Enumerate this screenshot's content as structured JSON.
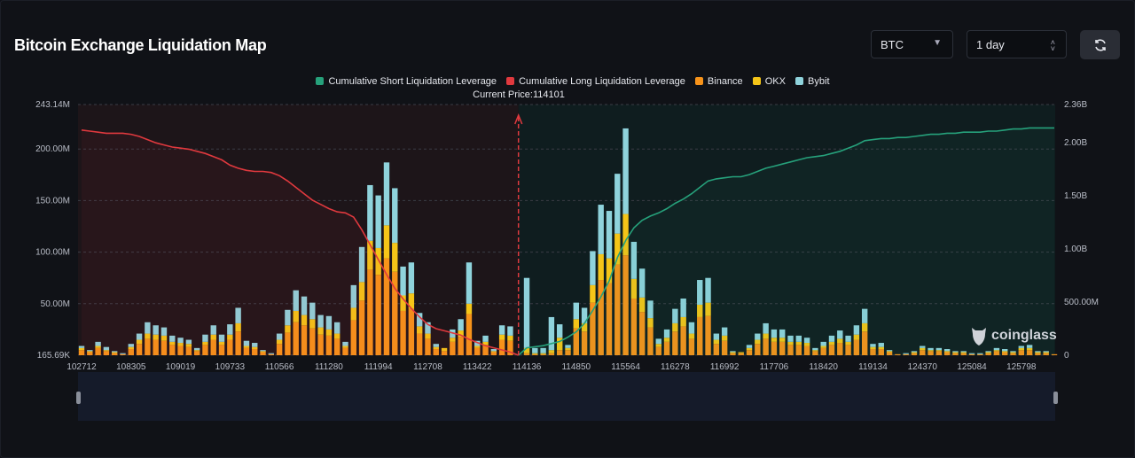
{
  "header": {
    "title": "Bitcoin Exchange Liquidation Map",
    "coin_select": "BTC",
    "range_select": "1 day",
    "refresh_icon": "refresh-icon"
  },
  "legend": [
    {
      "label": "Cumulative Short Liquidation Leverage",
      "color": "#26a17b"
    },
    {
      "label": "Cumulative Long Liquidation Leverage",
      "color": "#e0393e"
    },
    {
      "label": "Binance",
      "color": "#f7931a"
    },
    {
      "label": "OKX",
      "color": "#f5c518"
    },
    {
      "label": "Bybit",
      "color": "#8fd3dc"
    }
  ],
  "watermark": "coinglass",
  "chart_data": {
    "type": "bar",
    "current_price_label": "Current Price:114101",
    "current_price": 114101,
    "x_tick_labels": [
      "102712",
      "108305",
      "109019",
      "109733",
      "110566",
      "111280",
      "111994",
      "112708",
      "113422",
      "114136",
      "114850",
      "115564",
      "116278",
      "116992",
      "117706",
      "118420",
      "119134",
      "124370",
      "125084",
      "125798"
    ],
    "left_axis": {
      "unit": "M",
      "ylim": [
        0.16569,
        243.14
      ],
      "tick_labels": [
        "243.14M",
        "200.00M",
        "150.00M",
        "100.00M",
        "50.00M",
        "165.69K"
      ],
      "tick_values": [
        243.14,
        200,
        150,
        100,
        50,
        0.16569
      ]
    },
    "right_axis": {
      "unit": "B",
      "ylim": [
        0,
        2.36
      ],
      "tick_labels": [
        "2.36B",
        "2.00B",
        "1.50B",
        "1.00B",
        "500.00M",
        "0"
      ],
      "tick_values": [
        2.36,
        2.0,
        1.5,
        1.0,
        0.5,
        0
      ]
    },
    "grid": true,
    "legend_position": "top",
    "series": [
      {
        "name": "Binance",
        "color": "#f7931a",
        "values": [
          5,
          3,
          7,
          4,
          2,
          1,
          6,
          11,
          16,
          15,
          14,
          10,
          9,
          8,
          4,
          10,
          15,
          10,
          15,
          23,
          7,
          6,
          3,
          1,
          11,
          22,
          32,
          29,
          26,
          20,
          19,
          16,
          7,
          34,
          53,
          83,
          78,
          94,
          81,
          43,
          45,
          21,
          16,
          6,
          4,
          13,
          18,
          40,
          7,
          10,
          3,
          15,
          14,
          0,
          2,
          1,
          1,
          2,
          5,
          5,
          26,
          23,
          51,
          73,
          70,
          88,
          97,
          55,
          42,
          27,
          8,
          13,
          23,
          28,
          16,
          37,
          38,
          11,
          14,
          2,
          2,
          5,
          11,
          16,
          13,
          13,
          10,
          10,
          9,
          4,
          7,
          10,
          12,
          10,
          15,
          23,
          6,
          6,
          3,
          1,
          1,
          2,
          5,
          4,
          4,
          3,
          2,
          2,
          1,
          1,
          2,
          4,
          3,
          2,
          5,
          5,
          2,
          2,
          1
        ]
      },
      {
        "name": "OKX",
        "color": "#f5c518",
        "values": [
          2,
          1,
          2,
          1,
          1,
          0,
          2,
          4,
          5,
          5,
          5,
          3,
          3,
          3,
          1,
          3,
          5,
          3,
          5,
          8,
          2,
          2,
          1,
          0,
          4,
          7,
          11,
          10,
          9,
          7,
          6,
          5,
          2,
          12,
          18,
          28,
          26,
          32,
          28,
          15,
          15,
          7,
          5,
          2,
          3,
          4,
          6,
          10,
          2,
          3,
          1,
          5,
          5,
          0,
          5,
          1,
          1,
          3,
          12,
          2,
          9,
          8,
          17,
          25,
          24,
          30,
          40,
          19,
          14,
          9,
          3,
          4,
          8,
          9,
          5,
          12,
          13,
          4,
          5,
          1,
          1,
          2,
          4,
          5,
          4,
          4,
          3,
          3,
          3,
          1,
          2,
          3,
          4,
          3,
          5,
          8,
          2,
          2,
          1,
          0,
          0,
          1,
          2,
          1,
          1,
          1,
          1,
          1,
          0,
          0,
          1,
          1,
          1,
          1,
          2,
          2,
          1,
          1,
          0
        ]
      },
      {
        "name": "Bybit",
        "color": "#8fd3dc",
        "values": [
          2,
          1,
          4,
          3,
          1,
          1,
          3,
          6,
          11,
          9,
          8,
          6,
          5,
          4,
          2,
          7,
          9,
          7,
          10,
          15,
          5,
          4,
          1,
          1,
          6,
          15,
          20,
          18,
          16,
          12,
          13,
          11,
          4,
          22,
          34,
          54,
          51,
          61,
          53,
          28,
          30,
          13,
          11,
          3,
          0,
          8,
          11,
          40,
          5,
          6,
          2,
          9,
          9,
          0,
          68,
          5,
          5,
          32,
          13,
          3,
          16,
          15,
          33,
          48,
          46,
          58,
          83,
          36,
          28,
          17,
          5,
          8,
          14,
          18,
          11,
          24,
          24,
          6,
          8,
          1,
          0,
          3,
          6,
          10,
          8,
          8,
          6,
          6,
          5,
          2,
          4,
          6,
          8,
          6,
          9,
          14,
          3,
          4,
          1,
          0,
          1,
          1,
          2,
          2,
          2,
          2,
          1,
          1,
          1,
          1,
          1,
          2,
          2,
          1,
          2,
          3,
          1,
          1,
          0
        ]
      },
      {
        "name": "Cumulative Long Liquidation Leverage",
        "color": "#e0393e",
        "axis": "right",
        "values": [
          2.12,
          2.11,
          2.1,
          2.09,
          2.09,
          2.09,
          2.08,
          2.06,
          2.03,
          2.0,
          1.98,
          1.96,
          1.95,
          1.94,
          1.92,
          1.9,
          1.87,
          1.84,
          1.79,
          1.76,
          1.74,
          1.73,
          1.73,
          1.72,
          1.69,
          1.64,
          1.58,
          1.52,
          1.46,
          1.42,
          1.38,
          1.35,
          1.34,
          1.3,
          1.18,
          1.04,
          0.9,
          0.76,
          0.63,
          0.53,
          0.44,
          0.36,
          0.29,
          0.25,
          0.23,
          0.21,
          0.19,
          0.15,
          0.12,
          0.09,
          0.07,
          0.05,
          0.03,
          0.0
        ]
      },
      {
        "name": "Cumulative Short Liquidation Leverage",
        "color": "#26a17b",
        "axis": "right",
        "values": [
          0.0,
          0.07,
          0.08,
          0.09,
          0.11,
          0.13,
          0.17,
          0.22,
          0.3,
          0.42,
          0.55,
          0.7,
          0.92,
          1.08,
          1.2,
          1.27,
          1.31,
          1.34,
          1.38,
          1.43,
          1.47,
          1.52,
          1.58,
          1.64,
          1.66,
          1.67,
          1.68,
          1.68,
          1.7,
          1.73,
          1.76,
          1.78,
          1.8,
          1.82,
          1.84,
          1.86,
          1.87,
          1.88,
          1.9,
          1.92,
          1.95,
          1.98,
          2.02,
          2.03,
          2.04,
          2.04,
          2.05,
          2.05,
          2.06,
          2.07,
          2.08,
          2.08,
          2.09,
          2.09,
          2.1,
          2.1,
          2.1,
          2.11,
          2.11,
          2.12,
          2.13,
          2.13,
          2.14,
          2.14,
          2.14,
          2.14
        ]
      }
    ]
  }
}
